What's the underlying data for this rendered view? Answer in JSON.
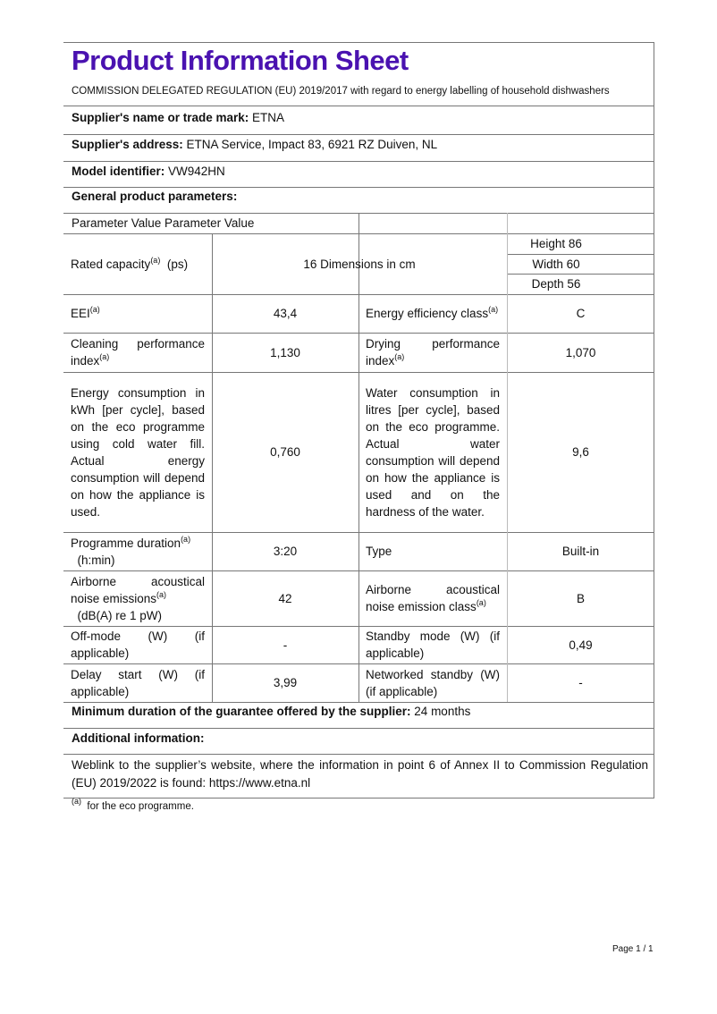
{
  "title": "Product Information Sheet",
  "regulation": "COMMISSION DELEGATED REGULATION (EU) 2019/2017 with regard to energy labelling of household dishwashers",
  "supplier_name": {
    "label": "Supplier's name or trade mark:",
    "value": "ETNA"
  },
  "supplier_address": {
    "label": "Supplier's address:",
    "value": "ETNA Service, Impact 83, 6921 RZ Duiven, NL"
  },
  "model": {
    "label": "Model identifier:",
    "value": "VW942HN"
  },
  "general_params": "General product parameters:",
  "table": {
    "header": "Parameter Value Parameter Value",
    "rated_capacity": {
      "label": "Rated capacity",
      "sup": "(a)",
      "unit": "(ps)"
    },
    "rated_capacity_value": "16 Dimensions in cm",
    "height": "Height 86",
    "width": "Width 60",
    "depth": "Depth 56",
    "eei": {
      "label": "EEI",
      "sup": "(a)",
      "value": "43,4"
    },
    "energy_class": {
      "label": "Energy efficiency class",
      "sup": "(a)",
      "value": "C"
    },
    "cleaning": {
      "label": "Cleaning performance index",
      "sup": "(a)",
      "value": "1,130"
    },
    "drying": {
      "label": "Drying performance index",
      "sup": "(a)",
      "value": "1,070"
    },
    "energy": {
      "label": "Energy consumption in kWh [per cycle], based on the eco programme using cold water fill. Actual energy consumption will depend on how the appliance is used.",
      "value": "0,760"
    },
    "water": {
      "label": "Water consumption in litres [per cycle], based on the eco programme. Actual water consumption will depend on how the appliance is used and on the hardness of the water.",
      "value": "9,6"
    },
    "duration": {
      "label": "Programme duration",
      "sup": "(a)",
      "unit": "(h:min)",
      "value": "3:20"
    },
    "type": {
      "label": "Type",
      "value": "Built-in"
    },
    "noise": {
      "label": "Airborne acoustical noise emissions",
      "sup": "(a)",
      "unit": "(dB(A) re 1 pW)",
      "value": "42"
    },
    "noise_class": {
      "label": "Airborne acoustical noise emission class",
      "sup": "(a)",
      "value": "B"
    },
    "off_mode": {
      "label": "Off-mode (W) (if applicable)",
      "value": "-"
    },
    "standby": {
      "label": "Standby mode (W) (if applicable)",
      "value": "0,49"
    },
    "delay": {
      "label": "Delay start (W) (if applicable)",
      "value": "3,99"
    },
    "networked": {
      "label": "Networked standby (W) (if applicable)",
      "value": "-"
    }
  },
  "guarantee": {
    "label": "Minimum duration of the guarantee offered by the supplier:",
    "value": "24 months"
  },
  "additional": "Additional information:",
  "weblink": "Weblink to the supplier’s website, where the information in point 6 of Annex II to Commission Regulation (EU) 2019/2022 is found:  https://www.etna.nl",
  "footnote": {
    "sup": "(a)",
    "text": "for the eco programme."
  },
  "page_number": "Page 1 / 1"
}
